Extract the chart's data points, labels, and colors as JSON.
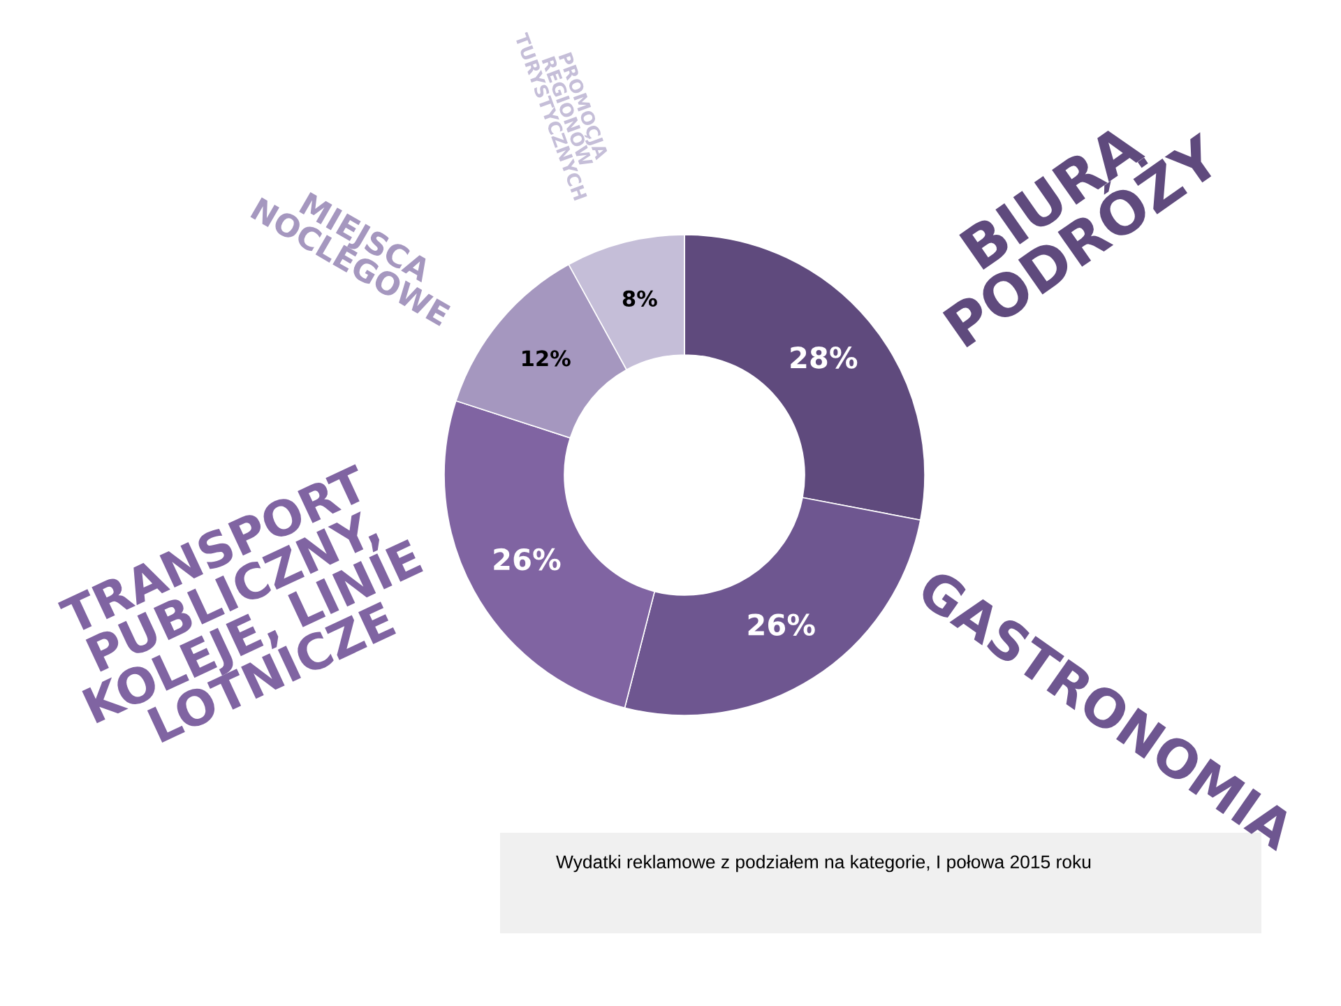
{
  "chart_data": {
    "type": "donut",
    "categories": [
      "BIURA\nPODRÓŻY",
      "GASTRONOMIA",
      "TRANSPORT\nPUBLICZNY,\nKOLEJE, LINIE\nLOTNICZE",
      "MIEJSCA\nNOCLEGOWE",
      "PROMOCJA\nREGIONÓW\nTURYSTYCZNYCH"
    ],
    "values": [
      28,
      26,
      26,
      12,
      8
    ],
    "value_labels": [
      "28%",
      "26%",
      "26%",
      "12%",
      "8%"
    ],
    "colors": [
      "#5f4a7d",
      "#6e5690",
      "#8064a2",
      "#a597bf",
      "#c5bed8"
    ],
    "legend": false,
    "annotations": [
      "Wydatki reklamowe z podziałem na kategorie, I połowa 2015 roku"
    ]
  }
}
